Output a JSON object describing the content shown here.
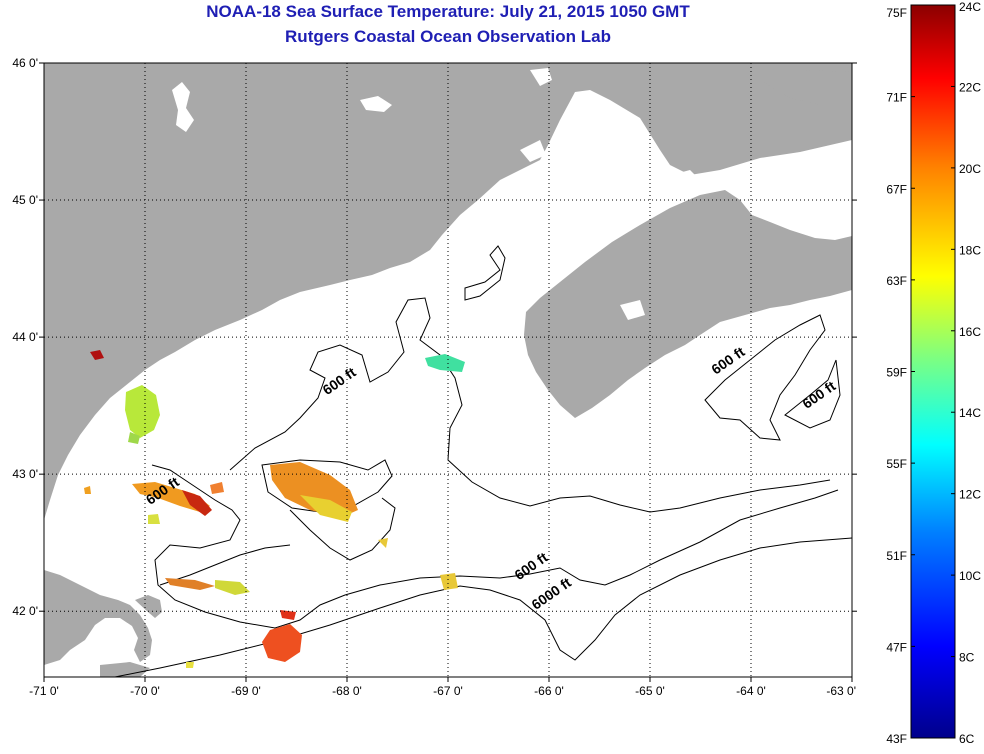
{
  "title_line1": "NOAA-18 Sea Surface Temperature:  July 21, 2015 1050 GMT",
  "title_line2": "Rutgers Coastal Ocean Observation Lab",
  "colors": {
    "land": "#a9a9a9",
    "water": "#ffffff",
    "title": "#1f1fb4",
    "contour": "#000000"
  },
  "map": {
    "lon_range": [
      -71,
      -63
    ],
    "lat_range": [
      41.5,
      46
    ],
    "lon_ticks": [
      {
        "value": -71,
        "label": "-71 0'"
      },
      {
        "value": -70,
        "label": "-70 0'"
      },
      {
        "value": -69,
        "label": "-69 0'"
      },
      {
        "value": -68,
        "label": "-68 0'"
      },
      {
        "value": -67,
        "label": "-67 0'"
      },
      {
        "value": -66,
        "label": "-66 0'"
      },
      {
        "value": -65,
        "label": "-65 0'"
      },
      {
        "value": -64,
        "label": "-64 0'"
      },
      {
        "value": -63,
        "label": "-63 0'"
      }
    ],
    "lat_ticks": [
      {
        "value": 46,
        "label": "46 0'"
      },
      {
        "value": 45,
        "label": "45 0'"
      },
      {
        "value": 44,
        "label": "44 0'"
      },
      {
        "value": 43,
        "label": "43 0'"
      },
      {
        "value": 42,
        "label": "42 0'"
      }
    ],
    "contour_labels": [
      {
        "text": "600 ft",
        "lon": -68.05,
        "lat": 43.65
      },
      {
        "text": "600 ft",
        "lon": -69.8,
        "lat": 42.85
      },
      {
        "text": "600 ft",
        "lon": -66.15,
        "lat": 42.3
      },
      {
        "text": "6000 ft",
        "lon": -65.95,
        "lat": 42.1
      },
      {
        "text": "600 ft",
        "lon": -64.2,
        "lat": 43.8
      },
      {
        "text": "600 ft",
        "lon": -63.3,
        "lat": 43.55
      }
    ]
  },
  "colorbar": {
    "f_labels": [
      "75F",
      "71F",
      "67F",
      "63F",
      "59F",
      "55F",
      "51F",
      "47F",
      "43F"
    ],
    "c_labels": [
      "24C",
      "22C",
      "20C",
      "18C",
      "16C",
      "14C",
      "12C",
      "10C",
      "8C",
      "6C"
    ],
    "stops": [
      "#00008b",
      "#0000ff",
      "#007fff",
      "#00ffff",
      "#7fff7f",
      "#ffff00",
      "#ff7f00",
      "#ff0000",
      "#8b0000"
    ]
  }
}
